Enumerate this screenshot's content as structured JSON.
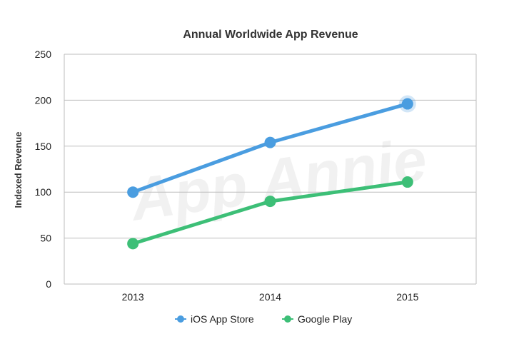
{
  "chart_data": {
    "type": "line",
    "title": "Annual Worldwide App Revenue",
    "xlabel": "",
    "ylabel": "Indexed Revenue",
    "categories": [
      "2013",
      "2014",
      "2015"
    ],
    "ylim": [
      0,
      250
    ],
    "yticks": [
      0,
      50,
      100,
      150,
      200,
      250
    ],
    "grid": true,
    "legend_position": "bottom",
    "series": [
      {
        "name": "iOS App Store",
        "values": [
          100,
          154,
          196
        ],
        "color": "#4a9de0"
      },
      {
        "name": "Google Play",
        "values": [
          44,
          90,
          111
        ],
        "color": "#3dbf77"
      }
    ],
    "watermark": "App Annie"
  }
}
